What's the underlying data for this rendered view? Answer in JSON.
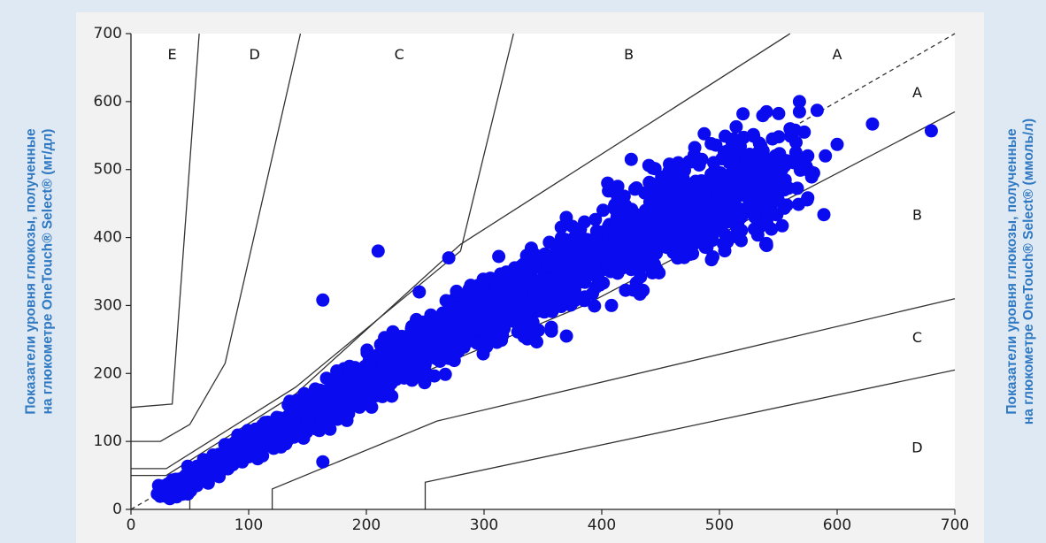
{
  "ylabel_left": {
    "line1": "Показатели уровня глюкозы, полученные",
    "line2": "на глюкометре OneTouch® Select® (мг/дл)"
  },
  "ylabel_right": {
    "line1": "Показатели уровня глюкозы, полученные",
    "line2": "на глюкометре OneTouch® Select® (ммоль/л)"
  },
  "colors": {
    "points": "#0b0bf0",
    "label_text": "#2f79c2",
    "background": "#dfe9f4",
    "plot_bg": "#ffffff"
  },
  "chart_data": {
    "type": "scatter",
    "title": "",
    "xlabel": "",
    "ylabel": "Показатели уровня глюкозы, полученные на глюкометре OneTouch® Select® (мг/дл)",
    "xlim": [
      0,
      700
    ],
    "ylim": [
      0,
      700
    ],
    "x_ticks": [
      "0",
      "100",
      "200",
      "300",
      "400",
      "500",
      "600",
      "700"
    ],
    "y_ticks": [
      "0",
      "100",
      "200",
      "300",
      "400",
      "500",
      "600",
      "700"
    ],
    "grid": false,
    "zone_labels": [
      {
        "label": "E",
        "x": 35,
        "y": 668
      },
      {
        "label": "D",
        "x": 105,
        "y": 668
      },
      {
        "label": "C",
        "x": 228,
        "y": 668
      },
      {
        "label": "B",
        "x": 423,
        "y": 668
      },
      {
        "label": "A",
        "x": 600,
        "y": 668
      },
      {
        "label": "A",
        "x": 668,
        "y": 612
      },
      {
        "label": "B",
        "x": 668,
        "y": 432
      },
      {
        "label": "C",
        "x": 668,
        "y": 252
      },
      {
        "label": "D",
        "x": 668,
        "y": 90
      }
    ],
    "zone_boundaries": [
      {
        "name": "identity-dashed",
        "dashed": true,
        "points": [
          [
            0,
            0
          ],
          [
            700,
            700
          ]
        ]
      },
      {
        "name": "E-D-left",
        "points": [
          [
            0,
            150
          ],
          [
            35,
            155
          ],
          [
            58,
            700
          ]
        ]
      },
      {
        "name": "D-C-left",
        "points": [
          [
            0,
            100
          ],
          [
            25,
            100
          ],
          [
            50,
            125
          ],
          [
            80,
            215
          ],
          [
            144,
            700
          ]
        ]
      },
      {
        "name": "C-B-left",
        "points": [
          [
            0,
            60
          ],
          [
            30,
            60
          ],
          [
            140,
            180
          ],
          [
            280,
            380
          ],
          [
            325,
            700
          ]
        ]
      },
      {
        "name": "A-B-upper",
        "points": [
          [
            0,
            50
          ],
          [
            30,
            50
          ],
          [
            140,
            170
          ],
          [
            280,
            390
          ],
          [
            560,
            700
          ]
        ]
      },
      {
        "name": "A-B-lower",
        "points": [
          [
            50,
            0
          ],
          [
            50,
            30
          ],
          [
            170,
            145
          ],
          [
            385,
            300
          ],
          [
            700,
            585
          ]
        ]
      },
      {
        "name": "B-C-lower",
        "points": [
          [
            120,
            0
          ],
          [
            120,
            30
          ],
          [
            260,
            130
          ],
          [
            700,
            310
          ]
        ]
      },
      {
        "name": "C-D-lower",
        "points": [
          [
            250,
            0
          ],
          [
            250,
            40
          ],
          [
            700,
            205
          ]
        ]
      }
    ],
    "dense_cluster": {
      "description": "dense band of points along y = x",
      "spine": [
        [
          25,
          20
        ],
        [
          60,
          55
        ],
        [
          100,
          95
        ],
        [
          150,
          140
        ],
        [
          200,
          190
        ],
        [
          250,
          240
        ],
        [
          300,
          290
        ],
        [
          350,
          330
        ],
        [
          400,
          380
        ],
        [
          450,
          420
        ],
        [
          500,
          460
        ],
        [
          550,
          500
        ]
      ]
    },
    "outliers": [
      {
        "x": 163,
        "y": 308
      },
      {
        "x": 163,
        "y": 70
      },
      {
        "x": 680,
        "y": 557
      },
      {
        "x": 630,
        "y": 567
      },
      {
        "x": 583,
        "y": 587
      },
      {
        "x": 540,
        "y": 585
      },
      {
        "x": 520,
        "y": 582
      },
      {
        "x": 568,
        "y": 600
      },
      {
        "x": 568,
        "y": 585
      },
      {
        "x": 600,
        "y": 537
      },
      {
        "x": 570,
        "y": 505
      },
      {
        "x": 580,
        "y": 495
      },
      {
        "x": 555,
        "y": 470
      },
      {
        "x": 525,
        "y": 445
      },
      {
        "x": 530,
        "y": 430
      },
      {
        "x": 470,
        "y": 455
      },
      {
        "x": 465,
        "y": 385
      },
      {
        "x": 405,
        "y": 480
      },
      {
        "x": 370,
        "y": 255
      },
      {
        "x": 330,
        "y": 280
      },
      {
        "x": 295,
        "y": 290
      },
      {
        "x": 270,
        "y": 370
      },
      {
        "x": 245,
        "y": 320
      },
      {
        "x": 210,
        "y": 380
      },
      {
        "x": 425,
        "y": 515
      },
      {
        "x": 465,
        "y": 510
      },
      {
        "x": 485,
        "y": 515
      },
      {
        "x": 508,
        "y": 520
      },
      {
        "x": 512,
        "y": 545
      },
      {
        "x": 493,
        "y": 538
      },
      {
        "x": 545,
        "y": 545
      },
      {
        "x": 565,
        "y": 540
      },
      {
        "x": 575,
        "y": 520
      },
      {
        "x": 590,
        "y": 520
      },
      {
        "x": 553,
        "y": 500
      },
      {
        "x": 572,
        "y": 555
      },
      {
        "x": 560,
        "y": 560
      },
      {
        "x": 535,
        "y": 520
      }
    ]
  }
}
